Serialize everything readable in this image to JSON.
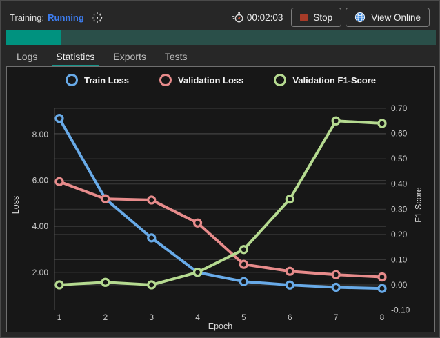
{
  "header": {
    "title_label": "Training:",
    "status": "Running",
    "timer": "00:02:03",
    "stop_label": "Stop",
    "view_online_label": "View Online"
  },
  "progress": {
    "percent": 13
  },
  "tabs": [
    {
      "label": "Logs",
      "active": false
    },
    {
      "label": "Statistics",
      "active": true
    },
    {
      "label": "Exports",
      "active": false
    },
    {
      "label": "Tests",
      "active": false
    }
  ],
  "colors": {
    "status_running": "#3d7df0",
    "progress_done": "#00927f",
    "progress_remaining": "#2a4f49",
    "tab_underline": "#16958a",
    "stop_icon": "#a63b28",
    "globe_icon": "#2f7fd8",
    "panel_background": "#171717",
    "gridline": "#3c3c3c"
  },
  "chart_data": {
    "type": "line",
    "x": [
      1,
      2,
      3,
      4,
      5,
      6,
      7,
      8
    ],
    "xlabel": "Epoch",
    "y_left": {
      "label": "Loss",
      "ticks": [
        2,
        4,
        6,
        8
      ],
      "range": [
        0.36,
        9.14
      ]
    },
    "y_right": {
      "label": "F1-Score",
      "ticks": [
        -0.1,
        0.0,
        0.1,
        0.2,
        0.3,
        0.4,
        0.5,
        0.6,
        0.7
      ],
      "range": [
        -0.1,
        0.7
      ]
    },
    "grid": true,
    "legend_position": "top",
    "series": [
      {
        "name": "Train Loss",
        "axis": "left",
        "color": "#68aae8",
        "values": [
          8.7,
          5.2,
          3.5,
          2.0,
          1.6,
          1.45,
          1.35,
          1.3
        ]
      },
      {
        "name": "Validation Loss",
        "axis": "left",
        "color": "#e78b8b",
        "values": [
          5.95,
          5.2,
          5.15,
          4.15,
          2.35,
          2.05,
          1.9,
          1.8
        ]
      },
      {
        "name": "Validation F1-Score",
        "axis": "right",
        "color": "#b5da90",
        "values": [
          0.0,
          0.01,
          0.0,
          0.05,
          0.14,
          0.34,
          0.65,
          0.64
        ]
      }
    ]
  }
}
